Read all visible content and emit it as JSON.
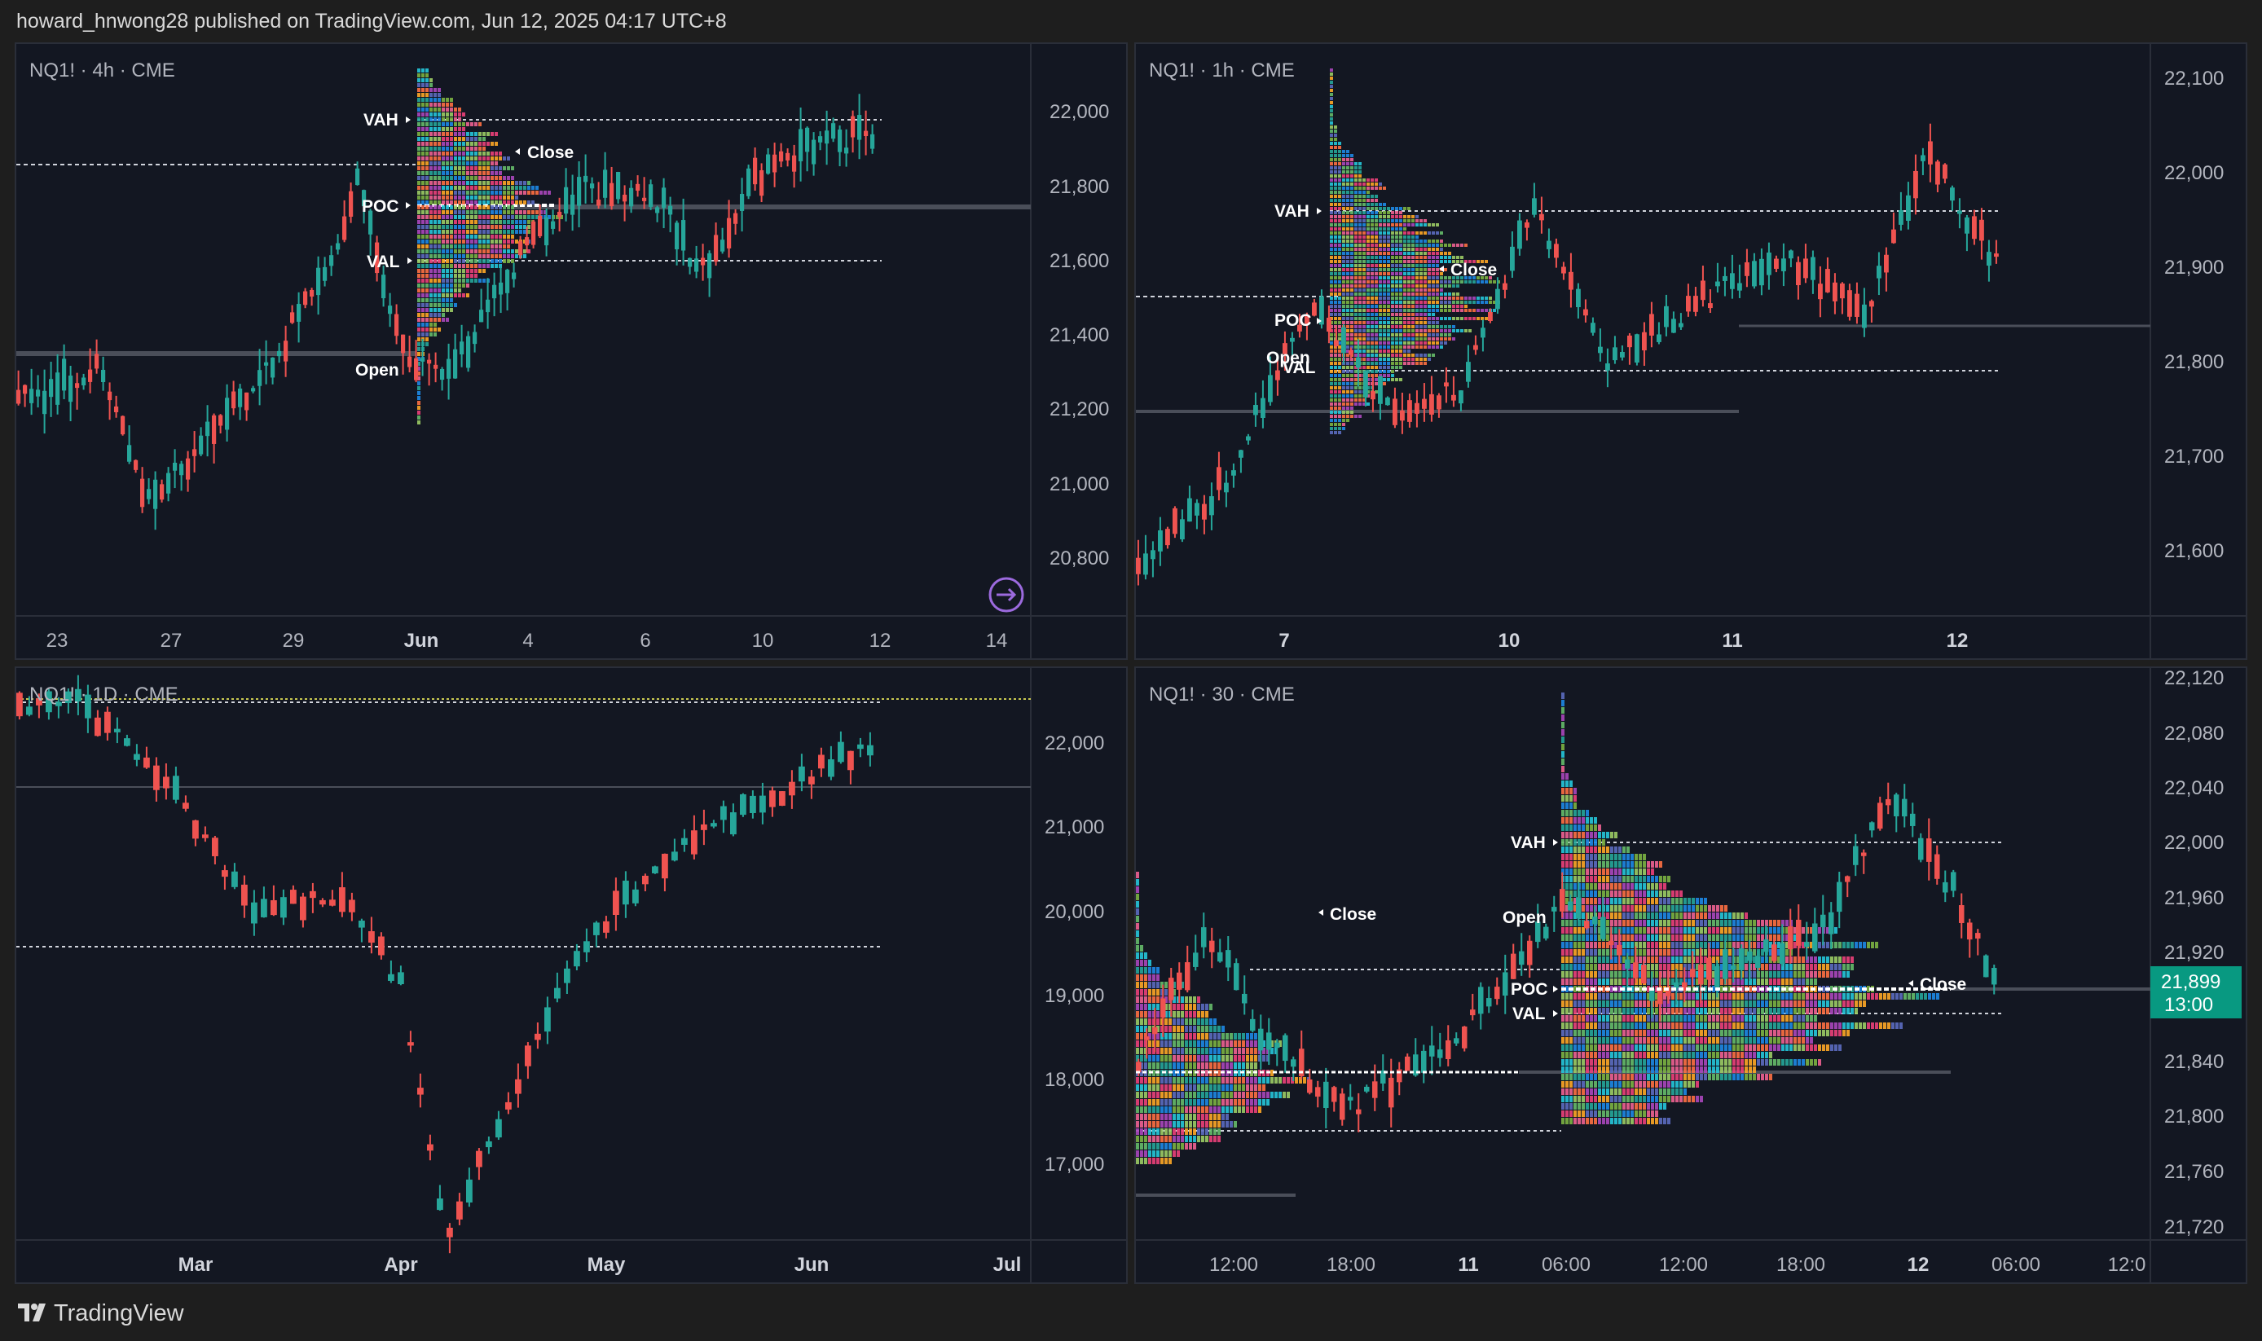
{
  "header": {
    "publish_line": "howard_hnwong28 published on TradingView.com, Jun 12, 2025 04:17 UTC+8"
  },
  "footer": {
    "brand": "TradingView"
  },
  "colors": {
    "bull": "#26a69a",
    "bear": "#ef5350",
    "bg": "#131722",
    "grid_text": "#b2b5be",
    "last_price_bg": "#089981"
  },
  "panels": [
    {
      "legend": "NQ1! · 4h · CME",
      "price_ticks": [
        "22,000",
        "21,800",
        "21,600",
        "21,400",
        "21,200",
        "21,000",
        "20,800"
      ],
      "time_ticks": [
        "23",
        "27",
        "29",
        "Jun",
        "4",
        "6",
        "10",
        "12",
        "14"
      ],
      "profile_labels": {
        "vah": "VAH",
        "poc": "POC",
        "val": "VAL",
        "open": "Open",
        "close": "Close"
      },
      "icon": "replay-arrow-icon"
    },
    {
      "legend": "NQ1! · 1h · CME",
      "price_ticks": [
        "22,100",
        "22,000",
        "21,900",
        "21,800",
        "21,700",
        "21,600"
      ],
      "time_ticks": [
        "7",
        "10",
        "11",
        "12"
      ],
      "profile_labels": {
        "vah": "VAH",
        "poc": "POC",
        "val": "VAL",
        "open": "Open",
        "close": "Close"
      }
    },
    {
      "legend": "NQ1! · 1D · CME",
      "price_ticks": [
        "22,000",
        "21,000",
        "20,000",
        "19,000",
        "18,000",
        "17,000"
      ],
      "time_ticks": [
        "Mar",
        "Apr",
        "May",
        "Jun",
        "Jul"
      ]
    },
    {
      "legend": "NQ1! · 30 · CME",
      "price_ticks": [
        "22,120",
        "22,080",
        "22,040",
        "22,000",
        "21,960",
        "21,920",
        "21,840",
        "21,800",
        "21,760",
        "21,720"
      ],
      "time_ticks": [
        "12:00",
        "18:00",
        "11",
        "06:00",
        "12:00",
        "18:00",
        "12",
        "06:00",
        "12:0"
      ],
      "profile_labels": {
        "vah": "VAH",
        "poc": "POC",
        "val": "VAL",
        "open": "Open",
        "close": "Close",
        "close2": "Close"
      },
      "last_price": "21,899",
      "countdown": "13:00"
    }
  ]
}
